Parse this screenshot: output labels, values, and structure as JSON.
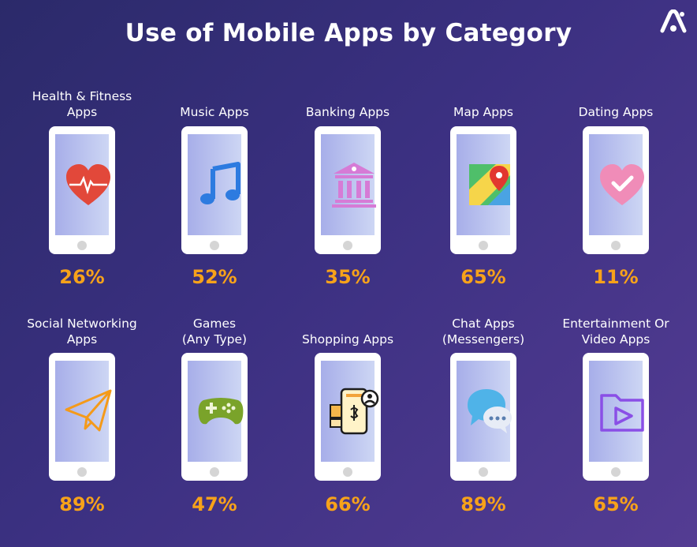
{
  "chart_data": {
    "type": "table",
    "title": "Use of Mobile Apps by Category",
    "categories": [
      "Health & Fitness Apps",
      "Music Apps",
      "Banking Apps",
      "Map Apps",
      "Dating Apps",
      "Social Networking Apps",
      "Games (Any Type)",
      "Shopping Apps",
      "Chat Apps (Messengers)",
      "Entertainment Or Video Apps"
    ],
    "values": [
      26,
      52,
      35,
      65,
      11,
      89,
      47,
      66,
      89,
      65
    ],
    "unit": "%"
  },
  "title": "Use of Mobile Apps by Category",
  "items": [
    {
      "label_lines": [
        "Health & Fitness",
        "Apps"
      ],
      "value": "26%",
      "icon": "heart-pulse-icon"
    },
    {
      "label_lines": [
        "Music Apps"
      ],
      "value": "52%",
      "icon": "music-note-icon"
    },
    {
      "label_lines": [
        "Banking Apps"
      ],
      "value": "35%",
      "icon": "bank-icon"
    },
    {
      "label_lines": [
        "Map Apps"
      ],
      "value": "65%",
      "icon": "map-pin-icon"
    },
    {
      "label_lines": [
        "Dating Apps"
      ],
      "value": "11%",
      "icon": "heart-check-icon"
    },
    {
      "label_lines": [
        "Social Networking",
        "Apps"
      ],
      "value": "89%",
      "icon": "paper-plane-icon"
    },
    {
      "label_lines": [
        "Games",
        "(Any Type)"
      ],
      "value": "47%",
      "icon": "gamepad-icon"
    },
    {
      "label_lines": [
        "Shopping Apps"
      ],
      "value": "66%",
      "icon": "shopping-phone-icon"
    },
    {
      "label_lines": [
        "Chat Apps",
        "(Messengers)"
      ],
      "value": "89%",
      "icon": "chat-bubbles-icon"
    },
    {
      "label_lines": [
        "Entertainment Or",
        "Video Apps"
      ],
      "value": "65%",
      "icon": "video-folder-icon"
    }
  ],
  "colors": {
    "background_start": "#2b2a6a",
    "background_end": "#543c93",
    "value": "#f7a21a",
    "text": "#ffffff",
    "phone": "#ffffff",
    "screen": "#b6bfee"
  }
}
